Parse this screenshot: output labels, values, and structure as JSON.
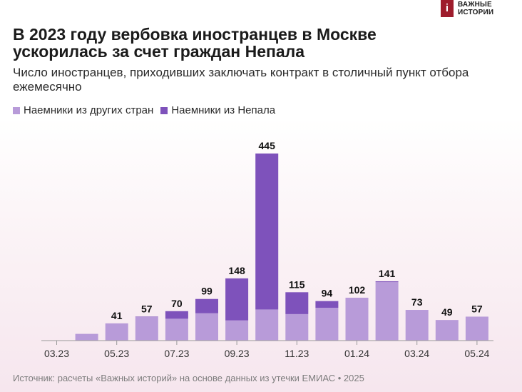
{
  "brand": {
    "name": "ВАЖНЫЕ\nИСТОРИИ"
  },
  "header": {
    "title": "В 2023 году вербовка иностранцев в Москве ускорилась за счет граждан Непала",
    "subtitle": "Число иностранцев, приходивших заключать контракт в столичный пункт отбора ежемесячно"
  },
  "source": "Источник: расчеты «Важных историй» на основе данных из утечки ЕМИАС • 2025",
  "colors": {
    "other": "#b89bd9",
    "nepal": "#7e52bb",
    "axis": "#9a9a9a",
    "label": "#111111"
  },
  "chart_data": {
    "type": "bar",
    "stacked": true,
    "categories": [
      "03.23",
      "04.23",
      "05.23",
      "06.23",
      "07.23",
      "08.23",
      "09.23",
      "10.23",
      "11.23",
      "12.23",
      "01.24",
      "02.24",
      "03.24",
      "04.24",
      "05.24"
    ],
    "x_tick_labels": [
      "03.23",
      "05.23",
      "07.23",
      "09.23",
      "11.23",
      "01.24",
      "03.24",
      "05.24"
    ],
    "series": [
      {
        "name": "Наемники из других стран",
        "values": [
          0,
          16,
          41,
          56,
          52,
          65,
          48,
          74,
          63,
          78,
          102,
          139,
          73,
          49,
          57
        ]
      },
      {
        "name": "Наемники из Непала",
        "values": [
          0,
          0,
          0,
          1,
          18,
          34,
          100,
          371,
          52,
          16,
          0,
          2,
          0,
          0,
          0
        ]
      }
    ],
    "totals": [
      0,
      16,
      41,
      57,
      70,
      99,
      148,
      445,
      115,
      94,
      102,
      141,
      73,
      49,
      57
    ],
    "total_labels": [
      "",
      "",
      "41",
      "57",
      "70",
      "99",
      "148",
      "445",
      "115",
      "94",
      "102",
      "141",
      "73",
      "49",
      "57"
    ],
    "ylim": [
      0,
      445
    ],
    "grid": false,
    "legend_position": "top-left"
  }
}
